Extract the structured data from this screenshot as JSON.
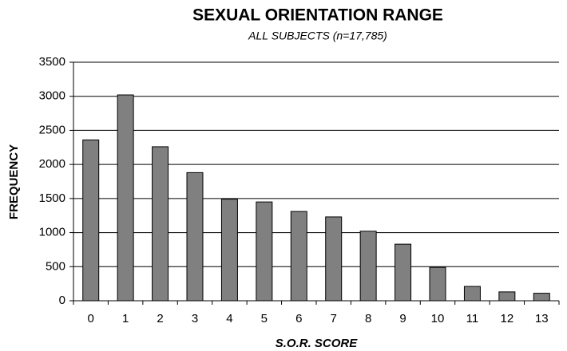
{
  "chart_data": {
    "type": "bar",
    "title": "SEXUAL ORIENTATION RANGE",
    "subtitle": "ALL SUBJECTS (n=17,785)",
    "x_label": "S.O.R. SCORE",
    "y_label": "FREQUENCY",
    "categories": [
      "0",
      "1",
      "2",
      "3",
      "4",
      "5",
      "6",
      "7",
      "8",
      "9",
      "10",
      "11",
      "12",
      "13"
    ],
    "values": [
      2360,
      3020,
      2260,
      1880,
      1490,
      1450,
      1310,
      1230,
      1020,
      830,
      490,
      210,
      130,
      110
    ],
    "color": "#808080",
    "ylim": [
      0,
      3500
    ],
    "yticks": [
      0,
      500,
      1000,
      1500,
      2000,
      2500,
      3000,
      3500
    ],
    "grid": true
  }
}
